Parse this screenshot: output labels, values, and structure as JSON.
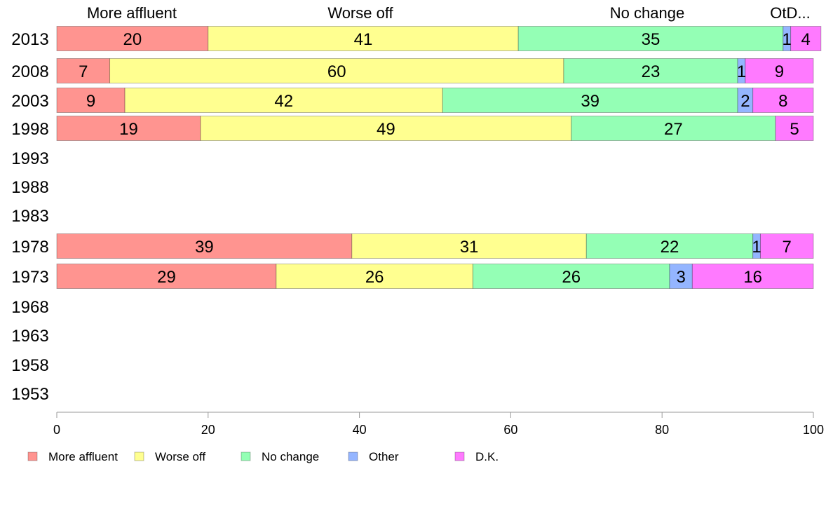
{
  "chart_data": {
    "type": "bar",
    "orientation": "horizontal",
    "stacked": true,
    "categories": [
      "2013",
      "2008",
      "2003",
      "1998",
      "1993",
      "1988",
      "1983",
      "1978",
      "1973",
      "1968",
      "1963",
      "1958",
      "1953"
    ],
    "series": [
      {
        "name": "More affluent",
        "color": "#FF9490",
        "values": [
          20,
          7,
          9,
          19,
          null,
          null,
          null,
          39,
          29,
          null,
          null,
          null,
          null
        ]
      },
      {
        "name": "Worse off",
        "color": "#FFFF90",
        "values": [
          41,
          60,
          42,
          49,
          null,
          null,
          null,
          31,
          26,
          null,
          null,
          null,
          null
        ]
      },
      {
        "name": "No change",
        "color": "#94FFB5",
        "values": [
          35,
          23,
          39,
          27,
          null,
          null,
          null,
          22,
          26,
          null,
          null,
          null,
          null
        ]
      },
      {
        "name": "Other",
        "color": "#94B5FF",
        "values": [
          1,
          1,
          2,
          0,
          null,
          null,
          null,
          1,
          3,
          null,
          null,
          null,
          null
        ]
      },
      {
        "name": "D.K.",
        "color": "#FF7AFF",
        "values": [
          4,
          9,
          8,
          5,
          null,
          null,
          null,
          7,
          16,
          null,
          null,
          null,
          null
        ]
      }
    ],
    "segment_labels": [
      [
        "20",
        "41",
        "35",
        "1",
        "4"
      ],
      [
        "7",
        "60",
        "23",
        "1",
        "9"
      ],
      [
        "9",
        "42",
        "39",
        "2",
        "8"
      ],
      [
        "19",
        "49",
        "27",
        "",
        "5"
      ],
      [],
      [],
      [],
      [
        "39",
        "31",
        "22",
        "1",
        "7"
      ],
      [
        "29",
        "26",
        "26",
        "3",
        "16"
      ],
      [],
      [],
      [],
      []
    ],
    "column_headers": [
      "More affluent",
      "Worse off",
      "No change",
      "OtD..."
    ],
    "x_ticks": [
      "0",
      "20",
      "40",
      "60",
      "80",
      "100"
    ],
    "xlim": [
      0,
      100
    ],
    "grid": false,
    "legend_position": "bottom-left"
  }
}
